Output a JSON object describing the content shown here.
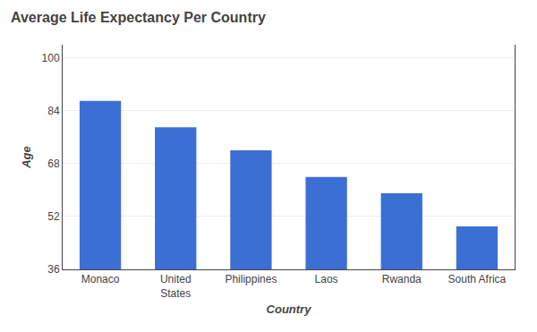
{
  "chart_data": {
    "type": "bar",
    "title": "Average Life Expectancy Per Country",
    "xlabel": "Country",
    "ylabel": "Age",
    "categories": [
      "Monaco",
      "United\nStates",
      "Philippines",
      "Laos",
      "Rwanda",
      "South Africa"
    ],
    "values": [
      87,
      79,
      72,
      64,
      59,
      49
    ],
    "color": "#3C6FD4",
    "ylim": [
      36,
      104
    ],
    "yticks": [
      36,
      52,
      68,
      84,
      100
    ],
    "grid": true
  }
}
